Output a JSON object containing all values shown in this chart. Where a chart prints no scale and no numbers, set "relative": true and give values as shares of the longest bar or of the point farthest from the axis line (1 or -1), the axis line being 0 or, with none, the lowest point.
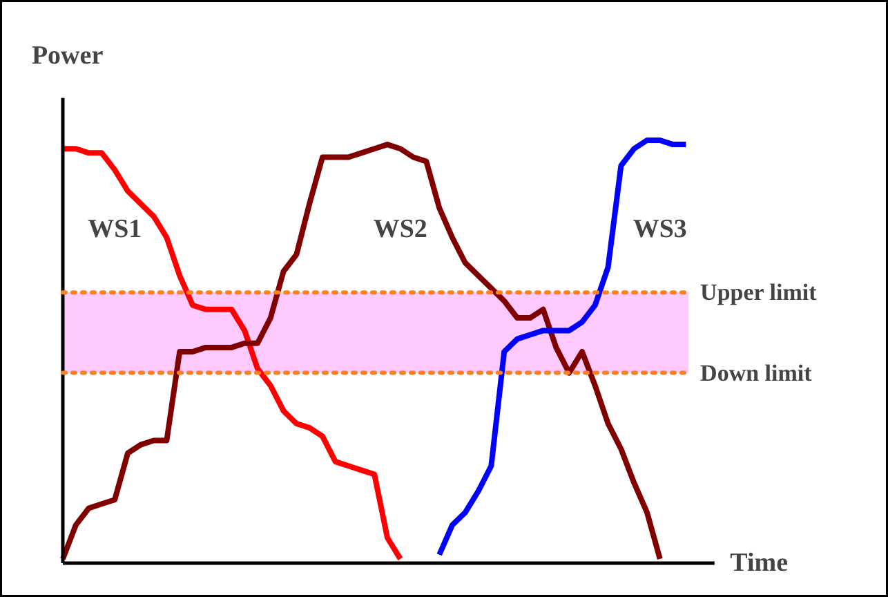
{
  "chart_data": {
    "type": "line",
    "relative": true,
    "xlabel": "Time",
    "ylabel": "Power",
    "line_style": "solid",
    "categories": [
      null,
      null,
      null,
      null,
      null,
      null,
      null,
      null,
      null,
      null,
      null,
      null,
      null,
      null,
      null,
      null,
      null,
      null,
      null,
      null,
      null,
      null,
      null,
      null,
      null,
      null,
      null,
      null,
      null,
      null,
      null,
      null,
      null,
      null,
      null,
      null,
      null,
      null,
      null,
      null,
      null,
      null,
      null,
      null,
      null,
      null,
      null,
      null,
      null
    ],
    "series": [
      {
        "name": "WS1",
        "color": "#ff0000",
        "values": [
          0.98,
          0.98,
          0.97,
          0.97,
          0.93,
          0.88,
          0.85,
          0.82,
          0.77,
          0.68,
          0.61,
          0.6,
          0.6,
          0.6,
          0.55,
          0.46,
          0.42,
          0.36,
          0.33,
          0.32,
          0.3,
          0.24,
          0.23,
          0.22,
          0.21,
          0.06,
          0.01,
          null,
          null,
          null,
          null,
          null,
          null,
          null,
          null,
          null,
          null,
          null,
          null,
          null,
          null,
          null,
          null,
          null,
          null,
          null,
          null,
          null,
          null
        ]
      },
      {
        "name": "WS2",
        "color": "#800000",
        "values": [
          0.01,
          0.09,
          0.13,
          0.14,
          0.15,
          0.26,
          0.28,
          0.29,
          0.29,
          0.5,
          0.5,
          0.51,
          0.51,
          0.51,
          0.52,
          0.52,
          0.58,
          0.69,
          0.73,
          0.85,
          0.96,
          0.96,
          0.96,
          0.97,
          0.98,
          0.99,
          0.98,
          0.96,
          0.95,
          0.84,
          0.77,
          0.71,
          0.68,
          0.65,
          0.62,
          0.58,
          0.58,
          0.6,
          0.51,
          0.45,
          0.5,
          0.42,
          0.33,
          0.27,
          0.19,
          0.12,
          0.01,
          null,
          null
        ]
      },
      {
        "name": "WS3",
        "color": "#0000ff",
        "values": [
          null,
          null,
          null,
          null,
          null,
          null,
          null,
          null,
          null,
          null,
          null,
          null,
          null,
          null,
          null,
          null,
          null,
          null,
          null,
          null,
          null,
          null,
          null,
          null,
          null,
          null,
          null,
          null,
          null,
          0.02,
          0.09,
          0.12,
          0.17,
          0.23,
          0.5,
          0.53,
          0.54,
          0.55,
          0.55,
          0.55,
          0.57,
          0.61,
          0.7,
          0.94,
          0.98,
          1.0,
          1.0,
          0.99,
          0.99
        ]
      }
    ],
    "bands": [
      {
        "axis": "y",
        "from": 0.45,
        "to": 0.64,
        "color": "#ffb3ff"
      }
    ],
    "ref_lines": [
      {
        "axis": "y",
        "value": 0.64,
        "label": "Upper limit",
        "color": "#ff8020",
        "line_style": "dotted"
      },
      {
        "axis": "y",
        "value": 0.45,
        "label": "Down limit",
        "color": "#ff8020",
        "line_style": "dotted"
      }
    ]
  }
}
